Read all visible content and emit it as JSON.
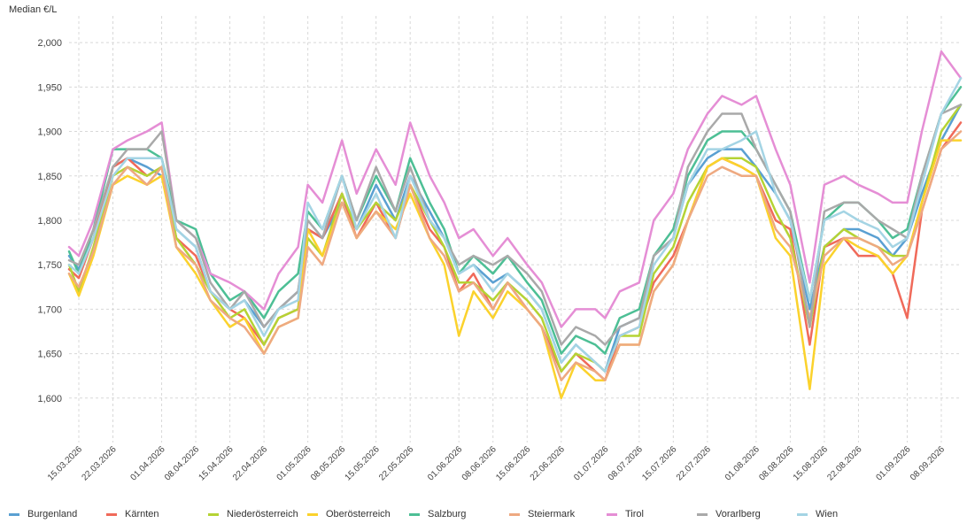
{
  "chart_data": {
    "type": "line",
    "ylabel": "Median €/L",
    "ylim": [
      1.55,
      2.03
    ],
    "y_ticks": [
      "1,600",
      "1,650",
      "1,700",
      "1,750",
      "1,800",
      "1,850",
      "1,900",
      "1,950",
      "2,000"
    ],
    "y_tick_values": [
      1.6,
      1.65,
      1.7,
      1.75,
      1.8,
      1.85,
      1.9,
      1.95,
      2.0
    ],
    "x_range": [
      "2026-03-13",
      "2026-09-12"
    ],
    "x_ticks": [
      "15.03.2026",
      "22.03.2026",
      "01.04.2026",
      "08.04.2026",
      "15.04.2026",
      "22.04.2026",
      "01.05.2026",
      "08.05.2026",
      "15.05.2026",
      "22.05.2026",
      "01.06.2026",
      "08.06.2026",
      "15.06.2026",
      "22.06.2026",
      "01.07.2026",
      "08.07.2026",
      "15.07.2026",
      "22.07.2026",
      "01.08.2026",
      "08.08.2026",
      "15.08.2026",
      "22.08.2026",
      "01.09.2026",
      "08.09.2026"
    ],
    "x_tick_dates": [
      "2026-03-15",
      "2026-03-22",
      "2026-04-01",
      "2026-04-08",
      "2026-04-15",
      "2026-04-22",
      "2026-05-01",
      "2026-05-08",
      "2026-05-15",
      "2026-05-22",
      "2026-06-01",
      "2026-06-08",
      "2026-06-15",
      "2026-06-22",
      "2026-07-01",
      "2026-07-08",
      "2026-07-15",
      "2026-07-22",
      "2026-08-01",
      "2026-08-08",
      "2026-08-15",
      "2026-08-22",
      "2026-09-01",
      "2026-09-08"
    ],
    "grid": true,
    "legend_position": "bottom",
    "x": [
      "2026-03-13",
      "2026-03-15",
      "2026-03-18",
      "2026-03-22",
      "2026-03-25",
      "2026-03-29",
      "2026-04-01",
      "2026-04-04",
      "2026-04-08",
      "2026-04-11",
      "2026-04-15",
      "2026-04-18",
      "2026-04-22",
      "2026-04-25",
      "2026-04-29",
      "2026-05-01",
      "2026-05-04",
      "2026-05-08",
      "2026-05-11",
      "2026-05-15",
      "2026-05-19",
      "2026-05-22",
      "2026-05-26",
      "2026-05-29",
      "2026-06-01",
      "2026-06-04",
      "2026-06-08",
      "2026-06-11",
      "2026-06-15",
      "2026-06-18",
      "2026-06-22",
      "2026-06-25",
      "2026-06-29",
      "2026-07-01",
      "2026-07-04",
      "2026-07-08",
      "2026-07-11",
      "2026-07-15",
      "2026-07-18",
      "2026-07-22",
      "2026-07-25",
      "2026-07-29",
      "2026-08-01",
      "2026-08-05",
      "2026-08-08",
      "2026-08-12",
      "2026-08-15",
      "2026-08-19",
      "2026-08-22",
      "2026-08-26",
      "2026-08-29",
      "2026-09-01",
      "2026-09-04",
      "2026-09-08",
      "2026-09-12"
    ],
    "series": [
      {
        "name": "Burgenland",
        "color": "#5aa0d2",
        "values": [
          1.76,
          1.745,
          1.78,
          1.86,
          1.87,
          1.86,
          1.85,
          1.79,
          1.77,
          1.72,
          1.7,
          1.71,
          1.68,
          1.7,
          1.72,
          1.79,
          1.78,
          1.82,
          1.79,
          1.84,
          1.8,
          1.85,
          1.81,
          1.78,
          1.74,
          1.75,
          1.73,
          1.74,
          1.72,
          1.7,
          1.64,
          1.66,
          1.64,
          1.63,
          1.68,
          1.69,
          1.76,
          1.78,
          1.84,
          1.87,
          1.88,
          1.88,
          1.86,
          1.83,
          1.8,
          1.7,
          1.77,
          1.79,
          1.79,
          1.78,
          1.76,
          1.78,
          1.83,
          1.89,
          1.93
        ]
      },
      {
        "name": "Kärnten",
        "color": "#f06a5a",
        "values": [
          1.745,
          1.735,
          1.78,
          1.86,
          1.87,
          1.85,
          1.86,
          1.78,
          1.76,
          1.72,
          1.7,
          1.69,
          1.66,
          1.69,
          1.7,
          1.79,
          1.78,
          1.83,
          1.78,
          1.82,
          1.78,
          1.84,
          1.79,
          1.77,
          1.72,
          1.74,
          1.7,
          1.73,
          1.7,
          1.68,
          1.63,
          1.65,
          1.63,
          1.62,
          1.67,
          1.68,
          1.73,
          1.76,
          1.8,
          1.86,
          1.87,
          1.86,
          1.85,
          1.8,
          1.79,
          1.66,
          1.77,
          1.78,
          1.76,
          1.76,
          1.74,
          1.69,
          1.81,
          1.88,
          1.91
        ]
      },
      {
        "name": "Niederösterreich",
        "color": "#b5d334",
        "values": [
          1.75,
          1.72,
          1.77,
          1.85,
          1.86,
          1.85,
          1.86,
          1.78,
          1.75,
          1.72,
          1.69,
          1.7,
          1.66,
          1.69,
          1.7,
          1.78,
          1.76,
          1.83,
          1.79,
          1.82,
          1.8,
          1.84,
          1.8,
          1.77,
          1.73,
          1.73,
          1.71,
          1.73,
          1.71,
          1.69,
          1.63,
          1.65,
          1.64,
          1.63,
          1.67,
          1.67,
          1.74,
          1.77,
          1.82,
          1.86,
          1.87,
          1.87,
          1.86,
          1.81,
          1.78,
          1.68,
          1.77,
          1.79,
          1.78,
          1.77,
          1.76,
          1.76,
          1.82,
          1.9,
          1.93
        ]
      },
      {
        "name": "Oberösterreich",
        "color": "#fbd22c",
        "values": [
          1.74,
          1.715,
          1.76,
          1.84,
          1.85,
          1.84,
          1.85,
          1.77,
          1.74,
          1.71,
          1.68,
          1.69,
          1.65,
          1.68,
          1.69,
          1.79,
          1.76,
          1.82,
          1.78,
          1.81,
          1.79,
          1.83,
          1.78,
          1.75,
          1.67,
          1.72,
          1.69,
          1.72,
          1.7,
          1.68,
          1.6,
          1.64,
          1.62,
          1.62,
          1.66,
          1.66,
          1.72,
          1.75,
          1.8,
          1.86,
          1.87,
          1.86,
          1.85,
          1.78,
          1.76,
          1.61,
          1.75,
          1.78,
          1.77,
          1.76,
          1.74,
          1.76,
          1.82,
          1.89,
          1.89
        ]
      },
      {
        "name": "Salzburg",
        "color": "#4dbf95",
        "values": [
          1.765,
          1.74,
          1.79,
          1.88,
          1.88,
          1.88,
          1.87,
          1.8,
          1.79,
          1.74,
          1.71,
          1.72,
          1.69,
          1.72,
          1.74,
          1.81,
          1.79,
          1.85,
          1.8,
          1.85,
          1.81,
          1.87,
          1.82,
          1.79,
          1.74,
          1.76,
          1.74,
          1.76,
          1.73,
          1.71,
          1.65,
          1.67,
          1.66,
          1.65,
          1.69,
          1.7,
          1.76,
          1.79,
          1.85,
          1.89,
          1.9,
          1.9,
          1.88,
          1.84,
          1.81,
          1.71,
          1.8,
          1.82,
          1.82,
          1.8,
          1.78,
          1.79,
          1.85,
          1.92,
          1.95
        ]
      },
      {
        "name": "Steiermark",
        "color": "#eea981",
        "values": [
          1.74,
          1.725,
          1.765,
          1.84,
          1.86,
          1.84,
          1.86,
          1.77,
          1.75,
          1.71,
          1.69,
          1.68,
          1.65,
          1.68,
          1.69,
          1.77,
          1.75,
          1.82,
          1.78,
          1.81,
          1.78,
          1.84,
          1.78,
          1.76,
          1.72,
          1.73,
          1.7,
          1.73,
          1.7,
          1.68,
          1.62,
          1.64,
          1.63,
          1.62,
          1.66,
          1.66,
          1.72,
          1.75,
          1.8,
          1.85,
          1.86,
          1.85,
          1.85,
          1.79,
          1.77,
          1.69,
          1.76,
          1.78,
          1.78,
          1.77,
          1.75,
          1.76,
          1.81,
          1.88,
          1.9
        ]
      },
      {
        "name": "Tirol",
        "color": "#e58ed5",
        "values": [
          1.77,
          1.76,
          1.8,
          1.88,
          1.89,
          1.9,
          1.91,
          1.8,
          1.78,
          1.74,
          1.73,
          1.72,
          1.7,
          1.74,
          1.77,
          1.84,
          1.82,
          1.89,
          1.83,
          1.88,
          1.84,
          1.91,
          1.85,
          1.82,
          1.78,
          1.79,
          1.76,
          1.78,
          1.75,
          1.73,
          1.68,
          1.7,
          1.7,
          1.69,
          1.72,
          1.73,
          1.8,
          1.83,
          1.88,
          1.92,
          1.94,
          1.93,
          1.94,
          1.88,
          1.84,
          1.73,
          1.84,
          1.85,
          1.84,
          1.83,
          1.82,
          1.82,
          1.9,
          1.99,
          1.96
        ]
      },
      {
        "name": "Vorarlberg",
        "color": "#a9a9a9",
        "values": [
          1.755,
          1.75,
          1.79,
          1.86,
          1.88,
          1.88,
          1.9,
          1.8,
          1.78,
          1.73,
          1.7,
          1.72,
          1.68,
          1.7,
          1.72,
          1.8,
          1.78,
          1.85,
          1.8,
          1.86,
          1.81,
          1.86,
          1.8,
          1.78,
          1.75,
          1.76,
          1.75,
          1.76,
          1.74,
          1.72,
          1.66,
          1.68,
          1.67,
          1.66,
          1.68,
          1.69,
          1.76,
          1.78,
          1.86,
          1.9,
          1.92,
          1.92,
          1.88,
          1.84,
          1.81,
          1.68,
          1.81,
          1.82,
          1.82,
          1.8,
          1.79,
          1.78,
          1.85,
          1.92,
          1.93
        ]
      },
      {
        "name": "Wien",
        "color": "#a4d4e4",
        "values": [
          1.75,
          1.74,
          1.78,
          1.85,
          1.87,
          1.87,
          1.87,
          1.79,
          1.77,
          1.72,
          1.7,
          1.71,
          1.67,
          1.7,
          1.71,
          1.82,
          1.79,
          1.85,
          1.79,
          1.83,
          1.78,
          1.85,
          1.8,
          1.78,
          1.74,
          1.75,
          1.72,
          1.74,
          1.72,
          1.7,
          1.64,
          1.66,
          1.64,
          1.63,
          1.67,
          1.68,
          1.75,
          1.78,
          1.84,
          1.88,
          1.88,
          1.89,
          1.9,
          1.83,
          1.8,
          1.71,
          1.8,
          1.81,
          1.8,
          1.79,
          1.77,
          1.78,
          1.84,
          1.92,
          1.96
        ]
      }
    ]
  }
}
